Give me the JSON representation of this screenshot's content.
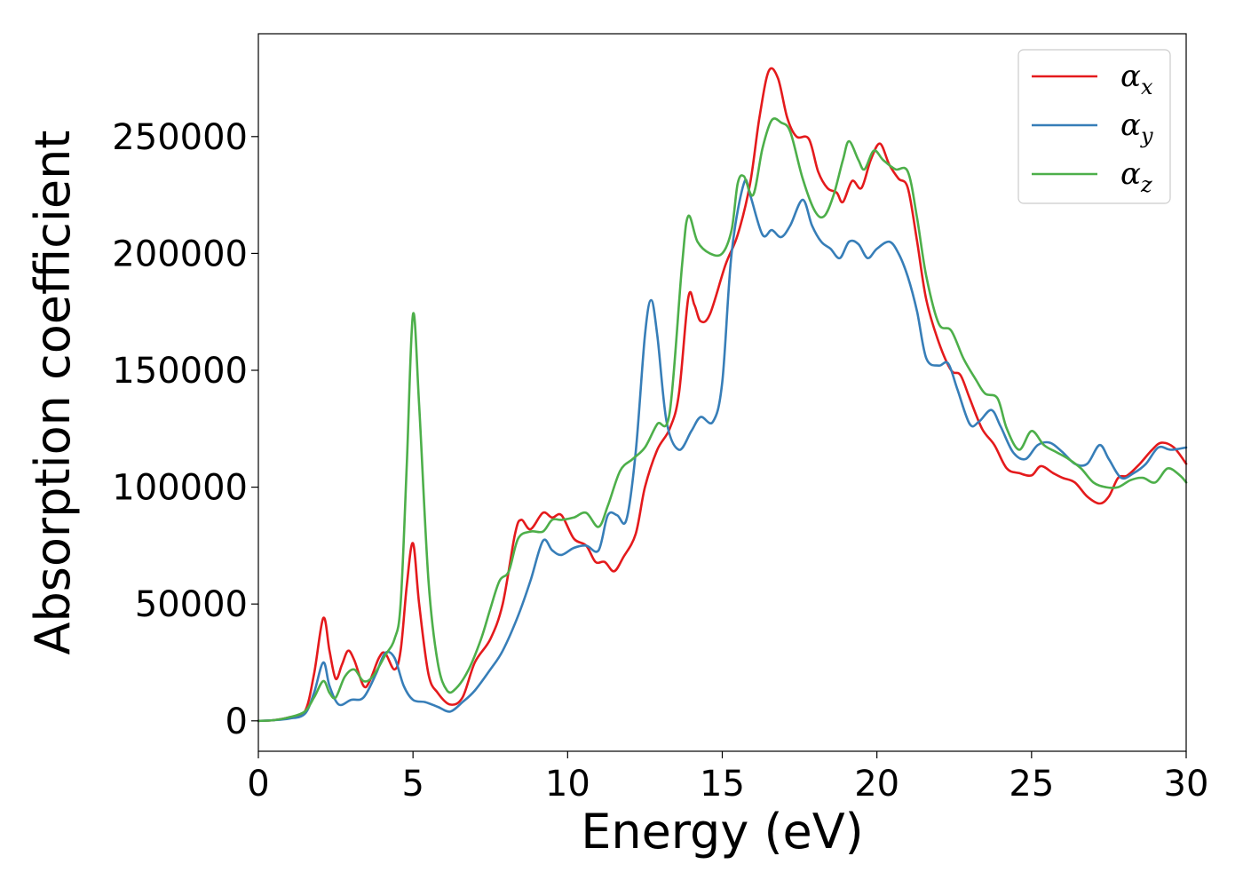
{
  "chart_data": {
    "type": "line",
    "xlabel": "Energy (eV)",
    "ylabel": "Absorption coefficient",
    "xlim": [
      0,
      30
    ],
    "ylim": [
      -13000,
      294000
    ],
    "xticks": [
      0,
      5,
      10,
      15,
      20,
      25,
      30
    ],
    "yticks": [
      0,
      50000,
      100000,
      150000,
      200000,
      250000
    ],
    "grid": false,
    "legend_position": "top-right",
    "series": [
      {
        "name": "α",
        "subscript": "x",
        "color": "#e41a1c",
        "points": [
          [
            0,
            0
          ],
          [
            0.5,
            300
          ],
          [
            1.0,
            1500
          ],
          [
            1.5,
            4000
          ],
          [
            1.8,
            20000
          ],
          [
            2.1,
            44000
          ],
          [
            2.3,
            30000
          ],
          [
            2.5,
            18000
          ],
          [
            2.7,
            24000
          ],
          [
            2.9,
            30000
          ],
          [
            3.1,
            26000
          ],
          [
            3.4,
            15000
          ],
          [
            3.6,
            17000
          ],
          [
            3.9,
            27000
          ],
          [
            4.1,
            29000
          ],
          [
            4.4,
            22000
          ],
          [
            4.6,
            30000
          ],
          [
            4.8,
            58000
          ],
          [
            5.0,
            76000
          ],
          [
            5.2,
            50000
          ],
          [
            5.5,
            20000
          ],
          [
            5.8,
            12000
          ],
          [
            6.2,
            7000
          ],
          [
            6.6,
            10000
          ],
          [
            7.0,
            25000
          ],
          [
            7.5,
            35000
          ],
          [
            7.9,
            50000
          ],
          [
            8.3,
            80000
          ],
          [
            8.5,
            86000
          ],
          [
            8.8,
            82000
          ],
          [
            9.2,
            89000
          ],
          [
            9.5,
            87000
          ],
          [
            9.8,
            88000
          ],
          [
            10.2,
            78000
          ],
          [
            10.6,
            75000
          ],
          [
            10.9,
            68000
          ],
          [
            11.2,
            68000
          ],
          [
            11.5,
            64000
          ],
          [
            11.8,
            70000
          ],
          [
            12.2,
            80000
          ],
          [
            12.5,
            100000
          ],
          [
            12.9,
            116000
          ],
          [
            13.3,
            125000
          ],
          [
            13.6,
            140000
          ],
          [
            13.9,
            181000
          ],
          [
            14.1,
            178000
          ],
          [
            14.3,
            171000
          ],
          [
            14.6,
            174000
          ],
          [
            15.1,
            195000
          ],
          [
            15.5,
            208000
          ],
          [
            15.9,
            230000
          ],
          [
            16.2,
            258000
          ],
          [
            16.5,
            278000
          ],
          [
            16.8,
            275000
          ],
          [
            17.1,
            258000
          ],
          [
            17.4,
            250000
          ],
          [
            17.8,
            249000
          ],
          [
            18.1,
            235000
          ],
          [
            18.4,
            228000
          ],
          [
            18.7,
            226000
          ],
          [
            18.9,
            222000
          ],
          [
            19.2,
            231000
          ],
          [
            19.5,
            228000
          ],
          [
            19.8,
            240000
          ],
          [
            20.1,
            247000
          ],
          [
            20.4,
            238000
          ],
          [
            20.7,
            232000
          ],
          [
            21.0,
            228000
          ],
          [
            21.3,
            205000
          ],
          [
            21.6,
            180000
          ],
          [
            22.0,
            162000
          ],
          [
            22.4,
            150000
          ],
          [
            22.7,
            148000
          ],
          [
            23.0,
            138000
          ],
          [
            23.4,
            125000
          ],
          [
            23.8,
            118000
          ],
          [
            24.2,
            108000
          ],
          [
            24.6,
            106000
          ],
          [
            25.0,
            105000
          ],
          [
            25.3,
            109000
          ],
          [
            25.7,
            106000
          ],
          [
            26.0,
            104000
          ],
          [
            26.4,
            102000
          ],
          [
            26.8,
            96000
          ],
          [
            27.2,
            93000
          ],
          [
            27.5,
            96000
          ],
          [
            27.8,
            104000
          ],
          [
            28.1,
            105000
          ],
          [
            28.5,
            110000
          ],
          [
            28.9,
            116000
          ],
          [
            29.2,
            119000
          ],
          [
            29.6,
            117000
          ],
          [
            30.0,
            110000
          ]
        ]
      },
      {
        "name": "α",
        "subscript": "y",
        "color": "#377eb8",
        "points": [
          [
            0,
            0
          ],
          [
            0.5,
            300
          ],
          [
            1.0,
            1000
          ],
          [
            1.5,
            3000
          ],
          [
            1.8,
            12000
          ],
          [
            2.1,
            25000
          ],
          [
            2.3,
            15000
          ],
          [
            2.6,
            7000
          ],
          [
            3.0,
            9000
          ],
          [
            3.4,
            10000
          ],
          [
            3.8,
            20000
          ],
          [
            4.1,
            29000
          ],
          [
            4.4,
            27000
          ],
          [
            4.7,
            15000
          ],
          [
            5.0,
            9000
          ],
          [
            5.4,
            8000
          ],
          [
            5.8,
            6000
          ],
          [
            6.2,
            4000
          ],
          [
            6.6,
            8000
          ],
          [
            7.0,
            13000
          ],
          [
            7.5,
            22000
          ],
          [
            7.9,
            30000
          ],
          [
            8.4,
            45000
          ],
          [
            8.8,
            60000
          ],
          [
            9.2,
            77000
          ],
          [
            9.5,
            73000
          ],
          [
            9.8,
            71000
          ],
          [
            10.2,
            74000
          ],
          [
            10.6,
            75000
          ],
          [
            11.0,
            73000
          ],
          [
            11.3,
            88000
          ],
          [
            11.6,
            88000
          ],
          [
            11.9,
            86000
          ],
          [
            12.2,
            115000
          ],
          [
            12.5,
            165000
          ],
          [
            12.7,
            180000
          ],
          [
            12.9,
            165000
          ],
          [
            13.2,
            128000
          ],
          [
            13.6,
            116000
          ],
          [
            14.0,
            124000
          ],
          [
            14.3,
            130000
          ],
          [
            14.7,
            128000
          ],
          [
            15.0,
            145000
          ],
          [
            15.3,
            200000
          ],
          [
            15.7,
            230000
          ],
          [
            15.9,
            225000
          ],
          [
            16.3,
            208000
          ],
          [
            16.6,
            210000
          ],
          [
            16.9,
            207000
          ],
          [
            17.2,
            212000
          ],
          [
            17.6,
            223000
          ],
          [
            17.9,
            212000
          ],
          [
            18.2,
            205000
          ],
          [
            18.5,
            202000
          ],
          [
            18.8,
            198000
          ],
          [
            19.1,
            205000
          ],
          [
            19.4,
            204000
          ],
          [
            19.7,
            198000
          ],
          [
            20.0,
            202000
          ],
          [
            20.4,
            205000
          ],
          [
            20.7,
            200000
          ],
          [
            21.0,
            190000
          ],
          [
            21.3,
            175000
          ],
          [
            21.6,
            155000
          ],
          [
            22.0,
            152000
          ],
          [
            22.3,
            153000
          ],
          [
            22.6,
            142000
          ],
          [
            23.0,
            127000
          ],
          [
            23.3,
            128000
          ],
          [
            23.7,
            133000
          ],
          [
            24.0,
            126000
          ],
          [
            24.4,
            115000
          ],
          [
            24.8,
            112000
          ],
          [
            25.2,
            118000
          ],
          [
            25.6,
            119000
          ],
          [
            26.0,
            115000
          ],
          [
            26.4,
            110000
          ],
          [
            26.8,
            110000
          ],
          [
            27.2,
            118000
          ],
          [
            27.5,
            112000
          ],
          [
            27.9,
            104000
          ],
          [
            28.3,
            106000
          ],
          [
            28.7,
            110000
          ],
          [
            29.1,
            117000
          ],
          [
            29.5,
            116000
          ],
          [
            30.0,
            117000
          ]
        ]
      },
      {
        "name": "α",
        "subscript": "z",
        "color": "#4daf4a",
        "points": [
          [
            0,
            0
          ],
          [
            0.5,
            300
          ],
          [
            1.0,
            1500
          ],
          [
            1.5,
            4000
          ],
          [
            1.8,
            10000
          ],
          [
            2.1,
            17000
          ],
          [
            2.3,
            12000
          ],
          [
            2.5,
            10000
          ],
          [
            2.8,
            19000
          ],
          [
            3.1,
            22000
          ],
          [
            3.4,
            17000
          ],
          [
            3.7,
            19000
          ],
          [
            4.1,
            28000
          ],
          [
            4.4,
            35000
          ],
          [
            4.6,
            50000
          ],
          [
            4.8,
            110000
          ],
          [
            5.0,
            174000
          ],
          [
            5.2,
            135000
          ],
          [
            5.5,
            60000
          ],
          [
            5.8,
            25000
          ],
          [
            6.1,
            13000
          ],
          [
            6.4,
            14000
          ],
          [
            6.8,
            22000
          ],
          [
            7.2,
            35000
          ],
          [
            7.5,
            48000
          ],
          [
            7.8,
            60000
          ],
          [
            8.1,
            64000
          ],
          [
            8.4,
            78000
          ],
          [
            8.8,
            81000
          ],
          [
            9.2,
            81000
          ],
          [
            9.5,
            86000
          ],
          [
            9.8,
            86000
          ],
          [
            10.2,
            87000
          ],
          [
            10.6,
            89000
          ],
          [
            11.0,
            83000
          ],
          [
            11.3,
            92000
          ],
          [
            11.7,
            107000
          ],
          [
            12.1,
            112000
          ],
          [
            12.5,
            117000
          ],
          [
            12.9,
            127000
          ],
          [
            13.3,
            132000
          ],
          [
            13.7,
            195000
          ],
          [
            13.9,
            216000
          ],
          [
            14.2,
            205000
          ],
          [
            14.6,
            200000
          ],
          [
            15.0,
            200000
          ],
          [
            15.3,
            210000
          ],
          [
            15.5,
            230000
          ],
          [
            15.7,
            233000
          ],
          [
            16.0,
            225000
          ],
          [
            16.3,
            245000
          ],
          [
            16.6,
            257000
          ],
          [
            16.9,
            256000
          ],
          [
            17.2,
            252000
          ],
          [
            17.6,
            232000
          ],
          [
            18.0,
            218000
          ],
          [
            18.3,
            216000
          ],
          [
            18.6,
            225000
          ],
          [
            18.9,
            240000
          ],
          [
            19.1,
            248000
          ],
          [
            19.4,
            240000
          ],
          [
            19.6,
            236000
          ],
          [
            19.9,
            244000
          ],
          [
            20.2,
            240000
          ],
          [
            20.6,
            236000
          ],
          [
            21.0,
            235000
          ],
          [
            21.3,
            215000
          ],
          [
            21.6,
            190000
          ],
          [
            22.0,
            170000
          ],
          [
            22.4,
            167000
          ],
          [
            22.8,
            155000
          ],
          [
            23.2,
            146000
          ],
          [
            23.5,
            140000
          ],
          [
            23.9,
            138000
          ],
          [
            24.2,
            125000
          ],
          [
            24.6,
            116000
          ],
          [
            25.0,
            124000
          ],
          [
            25.4,
            118000
          ],
          [
            25.8,
            115000
          ],
          [
            26.2,
            112000
          ],
          [
            26.6,
            108000
          ],
          [
            27.0,
            102000
          ],
          [
            27.4,
            100000
          ],
          [
            27.8,
            100000
          ],
          [
            28.2,
            103000
          ],
          [
            28.6,
            104000
          ],
          [
            29.0,
            102000
          ],
          [
            29.4,
            108000
          ],
          [
            29.8,
            105000
          ],
          [
            30.0,
            102000
          ]
        ]
      }
    ]
  }
}
